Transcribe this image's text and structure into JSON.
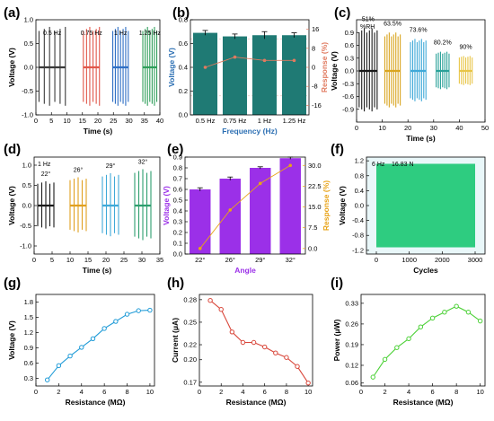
{
  "panels": [
    {
      "id": "a",
      "label": "(a)"
    },
    {
      "id": "b",
      "label": "(b)"
    },
    {
      "id": "c",
      "label": "(c)"
    },
    {
      "id": "d",
      "label": "(d)"
    },
    {
      "id": "e",
      "label": "(e)"
    },
    {
      "id": "f",
      "label": "(f)"
    },
    {
      "id": "g",
      "label": "(g)"
    },
    {
      "id": "h",
      "label": "(h)"
    },
    {
      "id": "i",
      "label": "(i)"
    }
  ],
  "chart_data": [
    {
      "panel": "a",
      "type": "line",
      "xlabel": "Time (s)",
      "ylabel": "Voltage (V)",
      "xlim": [
        0,
        40
      ],
      "ylim": [
        -1.0,
        1.0
      ],
      "xticks": [
        0,
        5,
        10,
        15,
        20,
        25,
        30,
        35,
        40
      ],
      "yticks": [
        -1.0,
        -0.5,
        0.0,
        0.5,
        1.0
      ],
      "bursts": [
        {
          "name": "0.5 Hz",
          "color": "#3a3a3a",
          "x_start": 1,
          "x_end": 9.5,
          "pulses": 6,
          "amplitude": 0.85
        },
        {
          "name": "0.75 Hz",
          "color": "#e0574a",
          "x_start": 15.3,
          "x_end": 20.5,
          "pulses": 6,
          "amplitude": 0.85
        },
        {
          "name": "1 Hz",
          "color": "#2f6fc4",
          "x_start": 24.8,
          "x_end": 29.8,
          "pulses": 7,
          "amplitude": 0.85
        },
        {
          "name": "1.25 Hz",
          "color": "#2f9e5a",
          "x_start": 34.5,
          "x_end": 39.0,
          "pulses": 7,
          "amplitude": 0.85
        }
      ]
    },
    {
      "panel": "b",
      "type": "bar",
      "xlabel": "Frequency (Hz)",
      "ylabel": "Voltage (V)",
      "y2label": "Response (%)",
      "categories": [
        "0.5 Hz",
        "0.75 Hz",
        "1 Hz",
        "1.25 Hz"
      ],
      "ylim": [
        0,
        0.8
      ],
      "yticks": [
        0.0,
        0.2,
        0.4,
        0.6,
        0.8
      ],
      "y2lim": [
        -20,
        20
      ],
      "y2ticks": [
        -16,
        -8,
        0,
        8,
        16
      ],
      "series": [
        {
          "axis": "y",
          "values": [
            0.69,
            0.66,
            0.67,
            0.67
          ],
          "errors": [
            0.02,
            0.02,
            0.03,
            0.02
          ],
          "color": "#1f7a74"
        },
        {
          "axis": "y2",
          "values": [
            0,
            4.3,
            2.9,
            2.9
          ],
          "color": "#e07a5f"
        }
      ]
    },
    {
      "panel": "c",
      "type": "line",
      "xlabel": "Time (s)",
      "ylabel": "Voltage (V)",
      "xlim": [
        0,
        50
      ],
      "ylim": [
        -1.2,
        1.2
      ],
      "xticks": [
        0,
        10,
        20,
        30,
        40,
        50
      ],
      "yticks": [
        -0.9,
        -0.6,
        -0.3,
        0.0,
        0.3,
        0.6,
        0.9
      ],
      "axis_note": "%RH",
      "bursts": [
        {
          "name": "51%",
          "color": "#1a1a1a",
          "x_start": 1,
          "x_end": 8,
          "pulses": 8,
          "amplitude": 1.0
        },
        {
          "name": "63.5%",
          "color": "#d9a520",
          "x_start": 11,
          "x_end": 17,
          "pulses": 8,
          "amplitude": 0.9
        },
        {
          "name": "73.6%",
          "color": "#3fa9d8",
          "x_start": 21,
          "x_end": 27,
          "pulses": 8,
          "amplitude": 0.75
        },
        {
          "name": "80.2%",
          "color": "#2aa198",
          "x_start": 31,
          "x_end": 36,
          "pulses": 7,
          "amplitude": 0.45
        },
        {
          "name": "90%",
          "color": "#e8c547",
          "x_start": 40,
          "x_end": 45,
          "pulses": 7,
          "amplitude": 0.35
        }
      ]
    },
    {
      "panel": "d",
      "type": "line",
      "xlabel": "Time (s)",
      "ylabel": "Voltage (V)",
      "xlim": [
        0,
        35
      ],
      "ylim": [
        -1.2,
        1.2
      ],
      "xticks": [
        0,
        5,
        10,
        15,
        20,
        25,
        30,
        35
      ],
      "yticks": [
        -1.0,
        -0.5,
        0.0,
        0.5,
        1.0
      ],
      "axis_note": "1 Hz",
      "bursts": [
        {
          "name": "22°",
          "color": "#1a1a1a",
          "x_start": 1,
          "x_end": 5.5,
          "pulses": 5,
          "amplitude": 0.6
        },
        {
          "name": "26°",
          "color": "#e0a020",
          "x_start": 10,
          "x_end": 14.5,
          "pulses": 5,
          "amplitude": 0.7
        },
        {
          "name": "29°",
          "color": "#3fa9d8",
          "x_start": 19,
          "x_end": 23.5,
          "pulses": 5,
          "amplitude": 0.8
        },
        {
          "name": "32°",
          "color": "#2e9e6e",
          "x_start": 28,
          "x_end": 32.5,
          "pulses": 5,
          "amplitude": 0.9
        }
      ]
    },
    {
      "panel": "e",
      "type": "bar",
      "xlabel": "Angle",
      "ylabel": "Voltage (V)",
      "y2label": "Response (%)",
      "categories": [
        "22°",
        "26°",
        "29°",
        "32°"
      ],
      "ylim": [
        0,
        0.9
      ],
      "yticks": [
        0.0,
        0.1,
        0.2,
        0.3,
        0.4,
        0.5,
        0.6,
        0.7,
        0.8,
        0.9
      ],
      "y2lim": [
        -2,
        33
      ],
      "y2ticks": [
        0.0,
        7.5,
        15.0,
        22.5,
        30.0
      ],
      "series": [
        {
          "axis": "y",
          "values": [
            0.6,
            0.7,
            0.8,
            0.89
          ],
          "errors": [
            0.015,
            0.015,
            0.01,
            0.01
          ],
          "color": "#9b30e8"
        },
        {
          "axis": "y2",
          "values": [
            0,
            13.9,
            23.5,
            30.0
          ],
          "color": "#e8a317"
        }
      ]
    },
    {
      "panel": "f",
      "type": "area",
      "xlabel": "Cycles",
      "ylabel": "Voltage (V)",
      "xlim": [
        -300,
        3300
      ],
      "ylim": [
        -1.3,
        1.3
      ],
      "xticks": [
        0,
        1000,
        2000,
        3000
      ],
      "yticks": [
        -1.2,
        -0.8,
        -0.4,
        0.0,
        0.4,
        0.8,
        1.2
      ],
      "annotations": [
        "6 Hz",
        "16.83 N"
      ],
      "series": [
        {
          "name": "",
          "x_start": 0,
          "x_end": 3000,
          "upper": 1.12,
          "lower": -1.12,
          "color": "#2ecc80"
        }
      ]
    },
    {
      "panel": "g",
      "type": "line",
      "xlabel": "Resistance (MΩ)",
      "ylabel": "Voltage (V)",
      "ylim": [
        0.15,
        1.95
      ],
      "yticks": [
        0.3,
        0.6,
        0.9,
        1.2,
        1.5,
        1.8
      ],
      "xlim": [
        0,
        10.4
      ],
      "xticks": [
        0,
        2,
        4,
        6,
        8,
        10
      ],
      "series": [
        {
          "x": [
            1,
            2,
            3,
            4,
            5,
            6,
            7,
            8,
            9,
            10
          ],
          "y": [
            0.27,
            0.55,
            0.74,
            0.91,
            1.08,
            1.28,
            1.42,
            1.56,
            1.63,
            1.64
          ],
          "color": "#1f9bd7"
        }
      ]
    },
    {
      "panel": "h",
      "type": "line",
      "xlabel": "Resistance (MΩ)",
      "ylabel": "Current (μA)",
      "ylim": [
        0.165,
        0.287
      ],
      "yticks": [
        0.17,
        0.2,
        0.22,
        0.25,
        0.28
      ],
      "xlim": [
        0,
        10.4
      ],
      "xticks": [
        0,
        2,
        4,
        6,
        8,
        10
      ],
      "series": [
        {
          "x": [
            1,
            2,
            3,
            4,
            5,
            6,
            7,
            8,
            9,
            10
          ],
          "y": [
            0.279,
            0.267,
            0.237,
            0.223,
            0.223,
            0.217,
            0.209,
            0.203,
            0.191,
            0.169
          ],
          "color": "#d9473b"
        }
      ]
    },
    {
      "panel": "i",
      "type": "line",
      "xlabel": "Resistance (MΩ)",
      "ylabel": "Power (μW)",
      "ylim": [
        0.05,
        0.36
      ],
      "yticks": [
        0.06,
        0.12,
        0.19,
        0.26,
        0.33
      ],
      "xlim": [
        0,
        10.4
      ],
      "xticks": [
        0,
        2,
        4,
        6,
        8,
        10
      ],
      "series": [
        {
          "x": [
            1,
            2,
            3,
            4,
            5,
            6,
            7,
            8,
            9,
            10
          ],
          "y": [
            0.08,
            0.14,
            0.18,
            0.21,
            0.25,
            0.28,
            0.3,
            0.32,
            0.3,
            0.27
          ],
          "color": "#4cd137"
        }
      ]
    }
  ]
}
